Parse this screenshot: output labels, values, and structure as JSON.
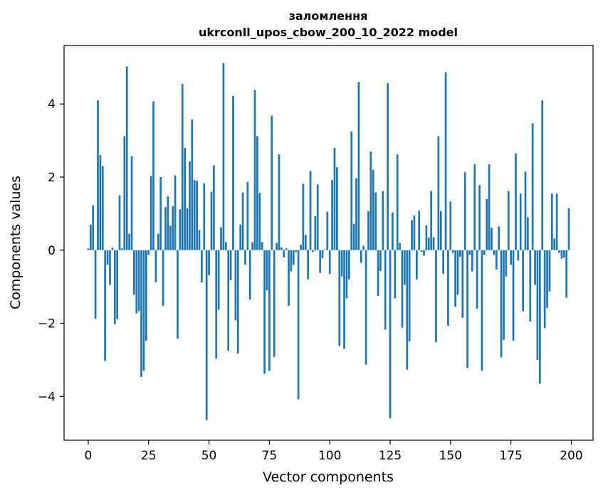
{
  "chart_data": {
    "type": "bar",
    "title_line1": "заломлення",
    "title_line2": "ukrconll_upos_cbow_200_10_2022 model",
    "xlabel": "Vector components",
    "ylabel": "Components values",
    "xlim": [
      -10,
      209
    ],
    "ylim": [
      -5.2,
      5.6
    ],
    "xticks": [
      0,
      25,
      50,
      75,
      100,
      125,
      150,
      175,
      200
    ],
    "yticks": [
      -4,
      -2,
      0,
      2,
      4
    ],
    "ytick_labels": [
      "−4",
      "−2",
      "0",
      "2",
      "4"
    ],
    "bar_color": "#1f77b4",
    "x": [
      0,
      1,
      2,
      3,
      4,
      5,
      6,
      7,
      8,
      9,
      10,
      11,
      12,
      13,
      14,
      15,
      16,
      17,
      18,
      19,
      20,
      21,
      22,
      23,
      24,
      25,
      26,
      27,
      28,
      29,
      30,
      31,
      32,
      33,
      34,
      35,
      36,
      37,
      38,
      39,
      40,
      41,
      42,
      43,
      44,
      45,
      46,
      47,
      48,
      49,
      50,
      51,
      52,
      53,
      54,
      55,
      56,
      57,
      58,
      59,
      60,
      61,
      62,
      63,
      64,
      65,
      66,
      67,
      68,
      69,
      70,
      71,
      72,
      73,
      74,
      75,
      76,
      77,
      78,
      79,
      80,
      81,
      82,
      83,
      84,
      85,
      86,
      87,
      88,
      89,
      90,
      91,
      92,
      93,
      94,
      95,
      96,
      97,
      98,
      99,
      100,
      101,
      102,
      103,
      104,
      105,
      106,
      107,
      108,
      109,
      110,
      111,
      112,
      113,
      114,
      115,
      116,
      117,
      118,
      119,
      120,
      121,
      122,
      123,
      124,
      125,
      126,
      127,
      128,
      129,
      130,
      131,
      132,
      133,
      134,
      135,
      136,
      137,
      138,
      139,
      140,
      141,
      142,
      143,
      144,
      145,
      146,
      147,
      148,
      149,
      150,
      151,
      152,
      153,
      154,
      155,
      156,
      157,
      158,
      159,
      160,
      161,
      162,
      163,
      164,
      165,
      166,
      167,
      168,
      169,
      170,
      171,
      172,
      173,
      174,
      175,
      176,
      177,
      178,
      179,
      180,
      181,
      182,
      183,
      184,
      185,
      186,
      187,
      188,
      189,
      190,
      191,
      192,
      193,
      194,
      195,
      196,
      197,
      198,
      199
    ],
    "values": [
      0.05,
      0.7,
      1.23,
      -1.88,
      4.1,
      2.6,
      2.3,
      -3.03,
      -0.4,
      -0.95,
      0.07,
      -2.03,
      -1.88,
      1.5,
      0.05,
      3.12,
      5.03,
      0.45,
      2.57,
      -1.22,
      -1.73,
      -1.67,
      -3.47,
      -3.3,
      -2.48,
      -0.12,
      2.03,
      4.07,
      -0.88,
      0.45,
      2.0,
      -1.52,
      1.18,
      1.47,
      0.67,
      1.2,
      2.05,
      -2.42,
      1.12,
      4.55,
      2.8,
      1.15,
      2.43,
      3.58,
      1.92,
      1.9,
      0.55,
      -0.88,
      1.83,
      -4.65,
      -0.68,
      1.6,
      2.32,
      -2.97,
      -1.63,
      0.63,
      5.12,
      0.22,
      -2.75,
      -0.82,
      4.22,
      -1.92,
      -2.83,
      0.7,
      1.58,
      -0.4,
      1.87,
      -1.35,
      0.22,
      4.38,
      3.12,
      1.57,
      0.22,
      -3.38,
      -1.1,
      -3.3,
      3.68,
      -2.92,
      0.2,
      2.62,
      0.08,
      -0.2,
      0.05,
      -1.52,
      -0.58,
      -0.4,
      -0.05,
      -4.08,
      0.15,
      1.82,
      0.42,
      -0.8,
      2.17,
      -0.05,
      0.93,
      1.8,
      -0.62,
      -0.22,
      0.02,
      1.05,
      -0.65,
      1.92,
      2.8,
      2.27,
      -2.62,
      -0.72,
      -2.7,
      -1.32,
      -0.8,
      3.25,
      0.72,
      1.97,
      4.6,
      -0.35,
      0.12,
      -3.13,
      1.07,
      2.7,
      2.2,
      1.58,
      -1.25,
      -0.57,
      1.62,
      -2.17,
      4.57,
      -4.6,
      1.03,
      -1.32,
      2.62,
      0.2,
      -2.12,
      -0.95,
      -3.27,
      -2.5,
      0.82,
      0.95,
      -0.8,
      1.08,
      -0.05,
      -0.15,
      0.68,
      0.35,
      1.62,
      0.35,
      -2.52,
      3.12,
      1.07,
      -0.65,
      4.87,
      -2.07,
      1.33,
      -0.08,
      -1.55,
      -1.22,
      -0.18,
      -1.85,
      2.13,
      -3.22,
      -0.12,
      -0.58,
      2.35,
      -1.6,
      1.78,
      -3.3,
      -0.13,
      1.4,
      2.35,
      0.62,
      -0.13,
      -0.53,
      0.65,
      -2.93,
      -2.45,
      -0.72,
      1.62,
      -0.4,
      -2.48,
      2.65,
      -0.28,
      1.55,
      -1.67,
      2.15,
      0.9,
      -1.95,
      3.47,
      -0.95,
      -3.0,
      -3.65,
      4.1,
      -2.13,
      -1.58,
      -1.13,
      1.55,
      0.32,
      1.55,
      -0.07,
      -0.23,
      -0.2,
      -1.3,
      1.15
    ]
  }
}
